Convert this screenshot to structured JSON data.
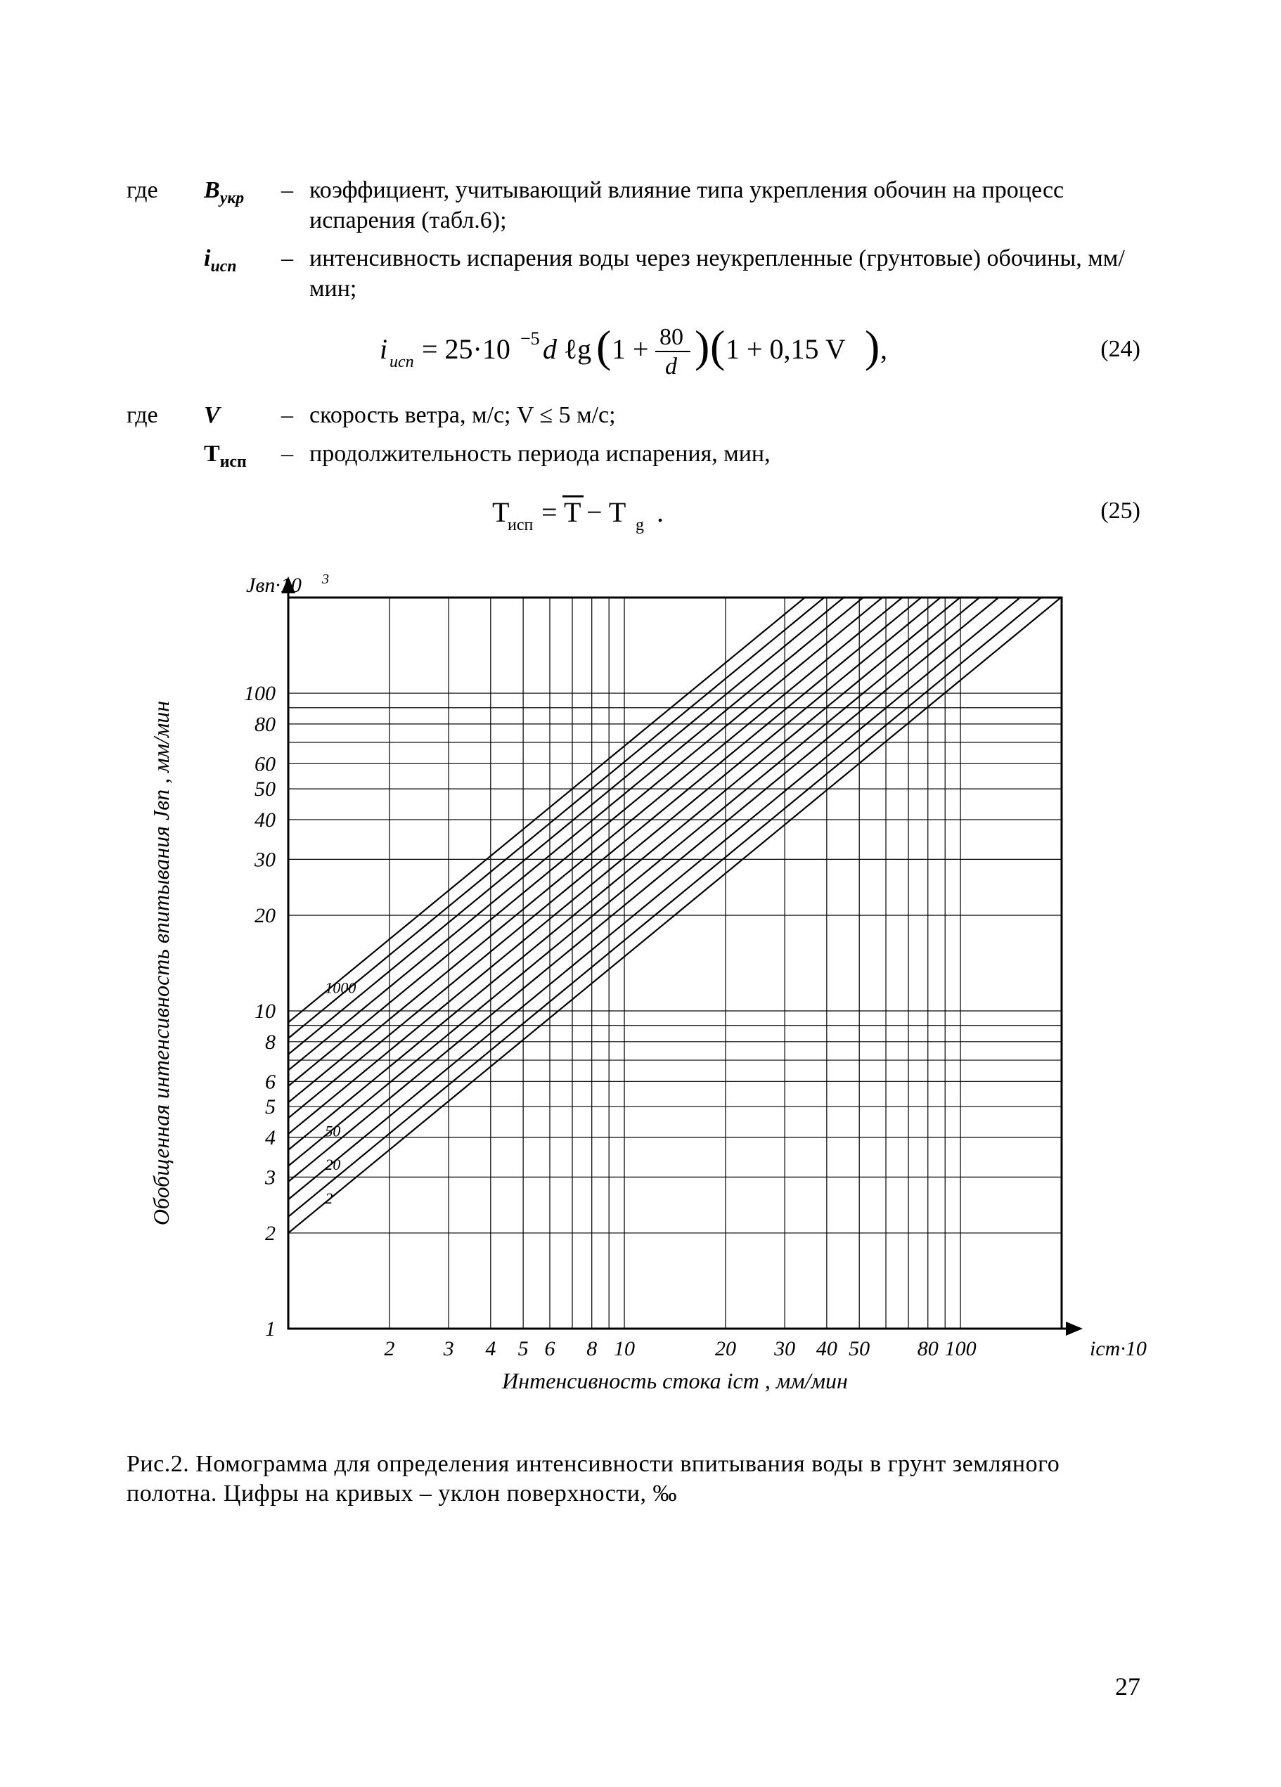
{
  "defs": {
    "lead": "где",
    "b_ukr": {
      "sym": "B",
      "sub": "укр",
      "text": "коэффициент, учитывающий влияние типа ук­репления обочин на процесс испарения (табл.6);"
    },
    "i_isp": {
      "sym": "i",
      "sub": "исп",
      "text": "интенсивность испарения воды через неук­репленные (грунтовые) обочины, мм/мин;"
    },
    "v": {
      "sym": "V",
      "text": "скорость ветра, м/с;  V ≤ 5 м/с;"
    },
    "t_isp": {
      "sym": "T",
      "sub": "исп",
      "text": "продолжительность периода испарения, мин,"
    }
  },
  "eq24": {
    "num": "(24)"
  },
  "eq25": {
    "num": "(25)"
  },
  "chart": {
    "type": "nomogram-loglog",
    "background_color": "#ffffff",
    "axis_color": "#000000",
    "grid_color": "#000000",
    "line_color": "#000000",
    "line_width": 2.2,
    "xlim": [
      1,
      200
    ],
    "ylim": [
      1,
      200
    ],
    "xticks": [
      1,
      2,
      3,
      4,
      5,
      6,
      8,
      10,
      20,
      30,
      40,
      50,
      80,
      100
    ],
    "xlabels": [
      "",
      "2",
      "3",
      "4",
      "5",
      "6",
      "8",
      "10",
      "20",
      "30",
      "40",
      "50",
      "80",
      "100"
    ],
    "yticks": [
      1,
      2,
      3,
      4,
      5,
      6,
      8,
      10,
      20,
      30,
      40,
      50,
      60,
      80,
      100
    ],
    "ylabels": [
      "1",
      "2",
      "3",
      "4",
      "5",
      "6",
      "8",
      "10",
      "20",
      "30",
      "40",
      "50",
      "60",
      "80",
      "100"
    ],
    "x_axis_label_html": "Интенсивность стока i<tspan baseline-shift=\"sub\" font-size=\"24\">ст</tspan> , мм/мин",
    "y_axis_label_html": "Обобщенная интенсивность впитывания J<tspan baseline-shift=\"sub\" font-size=\"24\">вп</tspan> , мм/мин",
    "x_top_label": "J₆п·10³",
    "x_right_label": "iст·10³",
    "curves_y_at_x1": [
      2.0,
      2.25,
      2.55,
      2.9,
      3.25,
      3.65,
      4.1,
      4.6,
      5.15,
      5.8,
      6.5,
      7.3,
      8.2,
      9.2
    ],
    "slope_decades_per_decade": 0.87,
    "curve_labels": [
      "2",
      "",
      "20",
      "",
      "50",
      "",
      "",
      "",
      "",
      "",
      "",
      "",
      "",
      "1000"
    ],
    "tick_font_size": 30,
    "tick_font_style": "italic",
    "axis_label_font_size": 32,
    "axis_label_font_style": "italic"
  },
  "caption": "Рис.2. Номограмма для определения интенсивности впи­тывания воды в грунт земляного полотна. Цифры на кри­вых – уклон поверхности, ‰",
  "page_number": "27"
}
